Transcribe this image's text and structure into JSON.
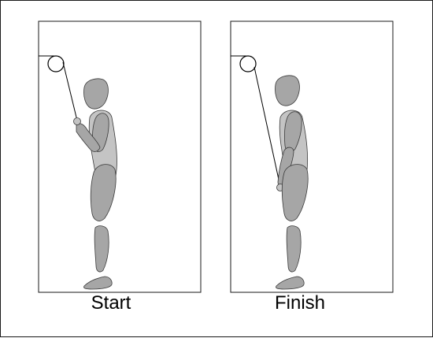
{
  "panels": [
    {
      "label": "Start"
    },
    {
      "label": "Finish"
    }
  ],
  "colors": {
    "frame": "#1a1a1a",
    "body_fill": "#a6a6a6",
    "body_fill_light": "#c4c4c4",
    "outline": "#3a3a3a",
    "cable": "#000000",
    "pulley": "#ffffff"
  }
}
